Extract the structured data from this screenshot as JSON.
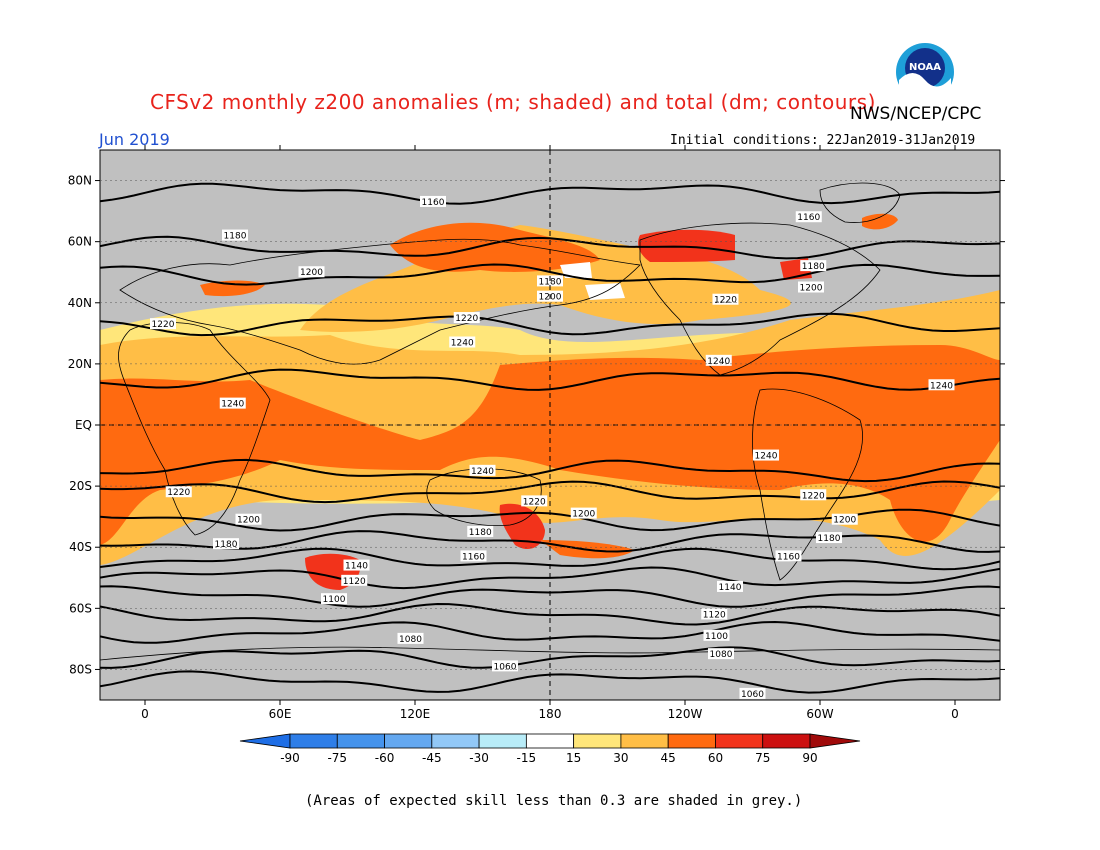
{
  "header": {
    "title": "CFSv2 monthly z200 anomalies (m; shaded) and total (dm; contours)",
    "agency": "NWS/NCEP/CPC",
    "month": "Jun 2019",
    "initial_conditions": "Initial conditions: 22Jan2019-31Jan2019",
    "logo_text": "NOAA"
  },
  "map": {
    "lat_labels": [
      "80N",
      "60N",
      "40N",
      "20N",
      "EQ",
      "20S",
      "40S",
      "60S",
      "80S"
    ],
    "lat_values": [
      80,
      60,
      40,
      20,
      0,
      -20,
      -40,
      -60,
      -80
    ],
    "lon_labels": [
      "0",
      "60E",
      "120E",
      "180",
      "120W",
      "60W",
      "0"
    ],
    "lon_values": [
      0,
      60,
      120,
      180,
      240,
      300,
      360
    ],
    "colors": {
      "background_grey": "#c0c0c0",
      "land_outline": "#000000",
      "class_15_30": "#ffe67a",
      "class_30_45": "#ffbe46",
      "class_45_60": "#ff6a10",
      "class_60_75": "#f2331b",
      "class_75_90": "#cc1010",
      "white": "#ffffff"
    },
    "contours": [
      {
        "value": "1160",
        "lat": 76
      },
      {
        "value": "1180",
        "lat": 58
      },
      {
        "value": "1200",
        "lat": 49
      },
      {
        "value": "1220",
        "lat": 33
      },
      {
        "value": "1240",
        "lat": 15
      },
      {
        "value": "1240",
        "lat": -15
      },
      {
        "value": "1220",
        "lat": -22
      },
      {
        "value": "1200",
        "lat": -31
      },
      {
        "value": "1180",
        "lat": -38
      },
      {
        "value": "1160",
        "lat": -44
      },
      {
        "value": "1140",
        "lat": -50
      },
      {
        "value": "1120",
        "lat": -56
      },
      {
        "value": "1100",
        "lat": -62
      },
      {
        "value": "1080",
        "lat": -68
      },
      {
        "value": "1060",
        "lat": -76
      },
      {
        "value": "1060",
        "lat": -84
      }
    ],
    "contour_labels": [
      {
        "text": "1160",
        "lon": 128,
        "lat": 73
      },
      {
        "text": "1160",
        "lon": 295,
        "lat": 68
      },
      {
        "text": "1180",
        "lon": 40,
        "lat": 62
      },
      {
        "text": "1180",
        "lon": 180,
        "lat": 47
      },
      {
        "text": "1180",
        "lon": 297,
        "lat": 52
      },
      {
        "text": "1200",
        "lon": 74,
        "lat": 50
      },
      {
        "text": "1200",
        "lon": 180,
        "lat": 42
      },
      {
        "text": "1200",
        "lon": 296,
        "lat": 45
      },
      {
        "text": "1220",
        "lon": 8,
        "lat": 33
      },
      {
        "text": "1220",
        "lon": 143,
        "lat": 35
      },
      {
        "text": "1220",
        "lon": 258,
        "lat": 41
      },
      {
        "text": "1240",
        "lon": 141,
        "lat": 27
      },
      {
        "text": "1240",
        "lon": 255,
        "lat": 21
      },
      {
        "text": "1240",
        "lon": 354,
        "lat": 13
      },
      {
        "text": "1240",
        "lon": 39,
        "lat": 7
      },
      {
        "text": "1240",
        "lon": 150,
        "lat": -15
      },
      {
        "text": "1240",
        "lon": 276,
        "lat": -10
      },
      {
        "text": "1220",
        "lon": 15,
        "lat": -22
      },
      {
        "text": "1220",
        "lon": 173,
        "lat": -25
      },
      {
        "text": "1220",
        "lon": 297,
        "lat": -23
      },
      {
        "text": "1200",
        "lon": 46,
        "lat": -31
      },
      {
        "text": "1200",
        "lon": 195,
        "lat": -29
      },
      {
        "text": "1200",
        "lon": 311,
        "lat": -31
      },
      {
        "text": "1180",
        "lon": 36,
        "lat": -39
      },
      {
        "text": "1180",
        "lon": 149,
        "lat": -35
      },
      {
        "text": "1180",
        "lon": 304,
        "lat": -37
      },
      {
        "text": "1160",
        "lon": 146,
        "lat": -43
      },
      {
        "text": "1160",
        "lon": 286,
        "lat": -43
      },
      {
        "text": "1140",
        "lon": 94,
        "lat": -46
      },
      {
        "text": "1140",
        "lon": 260,
        "lat": -53
      },
      {
        "text": "1120",
        "lon": 93,
        "lat": -51
      },
      {
        "text": "1120",
        "lon": 253,
        "lat": -62
      },
      {
        "text": "1100",
        "lon": 84,
        "lat": -57
      },
      {
        "text": "1100",
        "lon": 254,
        "lat": -69
      },
      {
        "text": "1080",
        "lon": 118,
        "lat": -70
      },
      {
        "text": "1080",
        "lon": 256,
        "lat": -75
      },
      {
        "text": "1060",
        "lon": 160,
        "lat": -79
      },
      {
        "text": "1060",
        "lon": 270,
        "lat": -88
      }
    ]
  },
  "colorbar": {
    "labels": [
      "-90",
      "-75",
      "-60",
      "-45",
      "-30",
      "-15",
      "15",
      "30",
      "45",
      "60",
      "75",
      "90"
    ],
    "colors": [
      "#1e6ee6",
      "#2e7ee8",
      "#4593ec",
      "#64a8f0",
      "#92c8f7",
      "#b8ecf8",
      "#ffffff",
      "#ffe67a",
      "#ffbe46",
      "#ff6a10",
      "#f2331b",
      "#cc1010",
      "#a00a0a"
    ]
  },
  "footnote": "(Areas of expected skill less than 0.3 are shaded in grey.)"
}
